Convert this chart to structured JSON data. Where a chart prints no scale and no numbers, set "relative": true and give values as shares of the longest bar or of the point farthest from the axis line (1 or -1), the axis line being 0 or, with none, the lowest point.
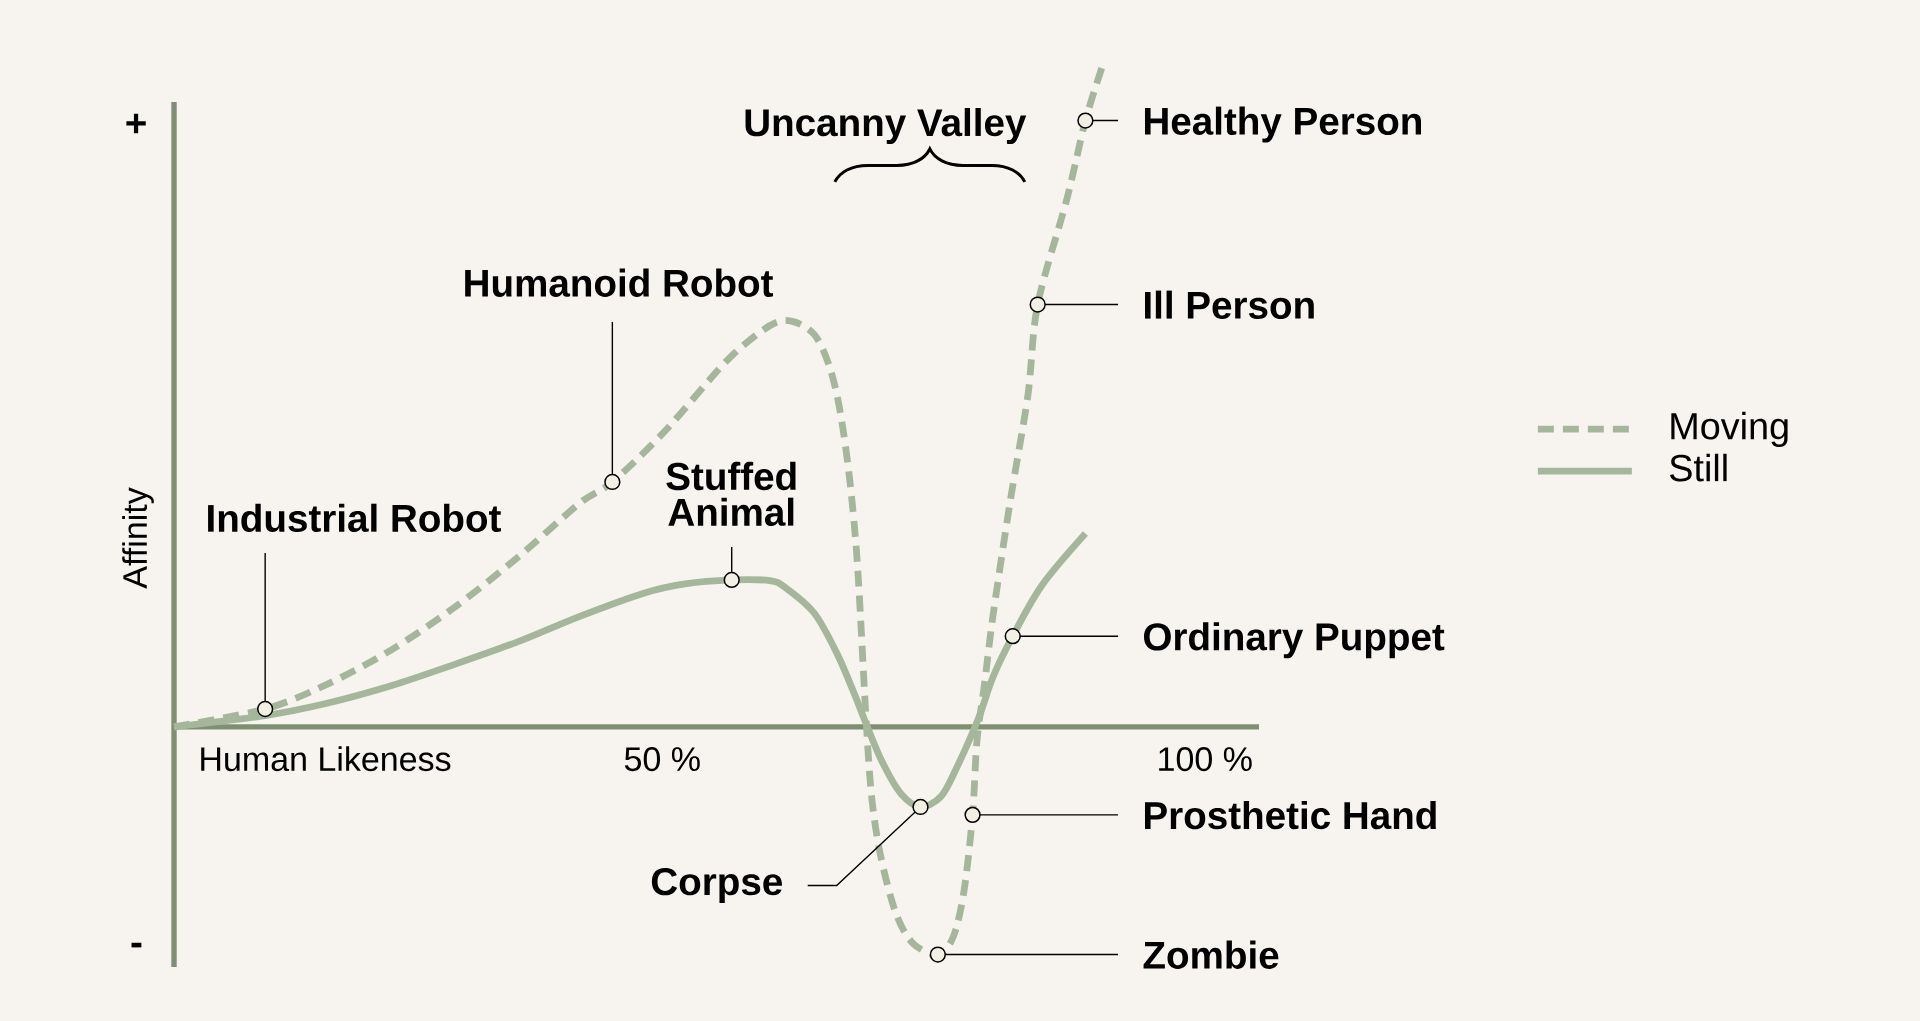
{
  "chart_data": {
    "type": "line",
    "xlabel": "Human Likeness",
    "ylabel": "Affinity",
    "relative": true,
    "legend": "right",
    "xlim": [
      5,
      105
    ],
    "xticks": [
      {
        "value": 50,
        "label": "50 %"
      },
      {
        "value": 100,
        "label": "100 %"
      }
    ],
    "series": [
      {
        "name": "Moving",
        "color": "#a5b79a",
        "line_style": "dashed",
        "x": [
          5,
          13.4,
          19.2,
          25.0,
          30.8,
          36.6,
          42.4,
          45.4,
          50.2,
          56.0,
          59.9,
          61.9,
          64.0,
          65.4,
          66.4,
          67.3,
          68.0,
          68.8,
          69.3,
          70.1,
          71.5,
          73.1,
          75.4,
          76.8,
          77.8,
          78.6,
          79.0,
          79.7,
          80.5,
          82.1,
          83.7,
          84.6,
          87.3,
          89.0,
          90.6
        ],
        "values": [
          0,
          0.027,
          0.065,
          0.116,
          0.18,
          0.255,
          0.338,
          0.37,
          0.446,
          0.554,
          0.606,
          0.613,
          0.593,
          0.545,
          0.476,
          0.37,
          0.242,
          0.007,
          -0.106,
          -0.193,
          -0.28,
          -0.327,
          -0.344,
          -0.318,
          -0.249,
          -0.133,
          -0.022,
          0.065,
          0.17,
          0.344,
          0.501,
          0.638,
          0.798,
          0.916,
          1.0
        ]
      },
      {
        "name": "Still",
        "color": "#a5b79a",
        "line_style": "solid",
        "x": [
          5,
          13.4,
          19.2,
          25.0,
          30.8,
          36.6,
          42.4,
          48.3,
          52.1,
          56.4,
          59.9,
          61.3,
          64.0,
          66.1,
          67.7,
          68.9,
          70.3,
          72.0,
          73.8,
          75.7,
          77.1,
          79.1,
          80.5,
          82.3,
          85.0,
          89.0
        ],
        "values": [
          0,
          0.017,
          0.036,
          0.062,
          0.094,
          0.128,
          0.167,
          0.202,
          0.216,
          0.222,
          0.221,
          0.211,
          0.172,
          0.111,
          0.05,
          0.0,
          -0.054,
          -0.101,
          -0.121,
          -0.105,
          -0.063,
          0.011,
          0.076,
          0.137,
          0.214,
          0.292
        ]
      }
    ],
    "annotations": [
      "+",
      "-",
      "Uncanny Valley",
      {
        "text": "Industrial Robot",
        "x": 13.4,
        "y": 0.027
      },
      {
        "text": "Humanoid Robot",
        "x": 45.4,
        "y": 0.37
      },
      {
        "text": "Stuffed Animal",
        "x": 56.4,
        "y": 0.222
      },
      {
        "text": "Corpse",
        "x": 73.8,
        "y": -0.121
      },
      {
        "text": "Zombie",
        "x": 75.4,
        "y": -0.344
      },
      {
        "text": "Prosthetic Hand",
        "x": 78.6,
        "y": -0.133
      },
      {
        "text": "Ordinary Puppet",
        "x": 82.3,
        "y": 0.137
      },
      {
        "text": "Ill Person",
        "x": 84.6,
        "y": 0.638
      },
      {
        "text": "Healthy Person",
        "x": 89.0,
        "y": 0.916
      }
    ]
  }
}
